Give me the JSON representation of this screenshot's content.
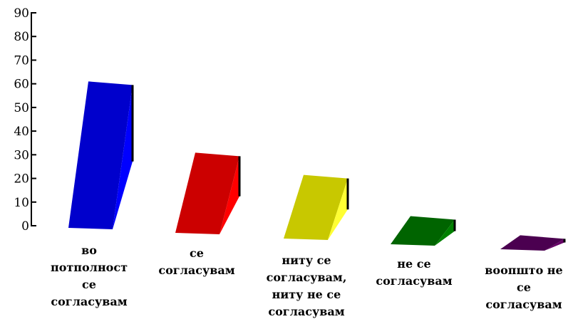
{
  "chart_data": {
    "type": "bar",
    "categories": [
      "во потполност се согласувам",
      "се согласувам",
      "ниту се согласувам, ниту не се согласувам",
      "не се согласувам",
      "воопшто не се согласувам"
    ],
    "category_label_lines": [
      [
        "во",
        "потполност",
        "се",
        "согласувам"
      ],
      [
        "се",
        "согласувам"
      ],
      [
        "ниту се",
        "согласувам,",
        "ниту не се",
        "согласувам"
      ],
      [
        "не се",
        "согласувам"
      ],
      [
        "воопшто не",
        "се",
        "согласувам"
      ]
    ],
    "values": [
      61,
      33,
      26,
      11,
      5
    ],
    "ylim": [
      0,
      90
    ],
    "yticks": [
      0,
      10,
      20,
      30,
      40,
      50,
      60,
      70,
      80,
      90
    ],
    "colors": [
      "#0000cc",
      "#cc0000",
      "#c8c800",
      "#006400",
      "#4b0050"
    ],
    "side_colors": [
      "#0000ff",
      "#ff0000",
      "#ffff33",
      "#008000",
      "#660066"
    ],
    "style": "3d-wedge",
    "grid": false,
    "legend": "none"
  }
}
